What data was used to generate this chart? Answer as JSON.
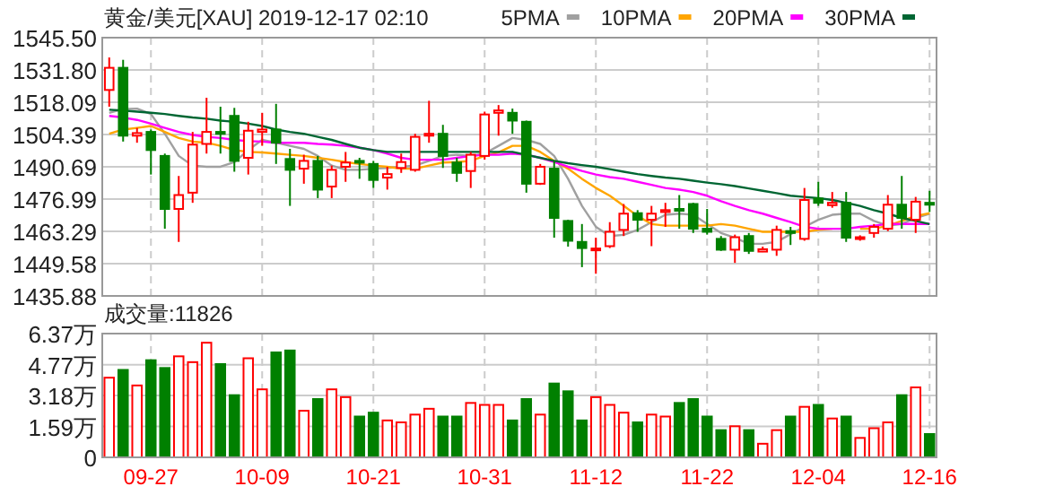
{
  "chart_data": [
    {
      "type": "candlestick",
      "title": "黄金/美元[XAU] 2019-12-17 02:10",
      "legend": "top right",
      "grid": true,
      "tick_labels": "y",
      "categories": [
        null,
        null,
        null,
        null,
        null,
        null,
        null,
        null,
        null,
        null,
        null,
        null,
        null,
        null,
        null,
        null,
        null,
        null,
        null,
        null,
        null,
        null,
        null,
        null,
        null,
        null,
        null,
        null,
        null,
        null,
        null,
        null,
        null,
        null,
        null,
        null,
        null,
        null,
        null,
        null,
        null,
        null,
        null,
        null,
        null,
        null,
        null,
        null,
        null,
        null,
        null,
        null,
        null,
        null,
        null,
        null,
        null,
        null,
        null,
        null
      ],
      "ylim": [
        1435.88,
        1545.5
      ],
      "yticks": [
        1435.88,
        1449.58,
        1463.29,
        1476.99,
        1490.69,
        1504.39,
        1518.09,
        {
          "value": 1531.8,
          "label": "1531.80"
        },
        {
          "value": 1545.5,
          "label": "1545.50"
        }
      ],
      "ohlc": [
        [
          1523.3,
          1537.1,
          1516.2,
          1532.7
        ],
        [
          1532.7,
          1536.1,
          1501.4,
          1503.9
        ],
        [
          1503.9,
          1507.2,
          1500.9,
          1505.0
        ],
        [
          1505.5,
          1506.5,
          1487.4,
          1497.8
        ],
        [
          1495.3,
          1496.3,
          1464.4,
          1472.8
        ],
        [
          1472.8,
          1486.8,
          1458.8,
          1478.7
        ],
        [
          1479.7,
          1505.5,
          1475.4,
          1500.1
        ],
        [
          1500.4,
          1520.0,
          1496.3,
          1505.5
        ],
        [
          1505.5,
          1516.2,
          1496.3,
          1504.7
        ],
        [
          1512.3,
          1515.7,
          1488.6,
          1493.2
        ],
        [
          1494.5,
          1509.8,
          1487.4,
          1506.0
        ],
        [
          1505.5,
          1513.6,
          1499.6,
          1506.5
        ],
        [
          1506.5,
          1517.4,
          1491.9,
          1500.9
        ],
        [
          1494.0,
          1498.3,
          1474.1,
          1489.4
        ],
        [
          1489.9,
          1495.8,
          1483.5,
          1493.2
        ],
        [
          1493.2,
          1495.3,
          1477.4,
          1481.0
        ],
        [
          1482.3,
          1491.2,
          1477.4,
          1489.4
        ],
        [
          1490.7,
          1497.0,
          1484.3,
          1492.5
        ],
        [
          1493.2,
          1494.5,
          1485.6,
          1492.5
        ],
        [
          1491.9,
          1493.2,
          1481.7,
          1485.1
        ],
        [
          1486.1,
          1490.7,
          1481.0,
          1487.6
        ],
        [
          1490.2,
          1496.3,
          1488.1,
          1492.7
        ],
        [
          1489.4,
          1504.7,
          1488.6,
          1503.4
        ],
        [
          1503.9,
          1518.7,
          1500.9,
          1504.7
        ],
        [
          1504.7,
          1508.5,
          1490.2,
          1495.3
        ],
        [
          1492.5,
          1494.5,
          1484.3,
          1488.1
        ],
        [
          1488.9,
          1497.0,
          1481.7,
          1495.8
        ],
        [
          1495.3,
          1514.1,
          1493.7,
          1512.9
        ],
        [
          1513.6,
          1516.9,
          1503.9,
          1514.6
        ],
        [
          1513.6,
          1515.4,
          1504.7,
          1510.3
        ],
        [
          1509.8,
          1510.3,
          1479.7,
          1483.5
        ],
        [
          1483.5,
          1491.9,
          1483.0,
          1490.7
        ],
        [
          1489.9,
          1493.2,
          1460.6,
          1469.0
        ],
        [
          1467.7,
          1468.2,
          1456.8,
          1459.3
        ],
        [
          1458.8,
          1466.4,
          1448.1,
          1456.2
        ],
        [
          1455.5,
          1460.6,
          1445.3,
          1456.0
        ],
        [
          1457.0,
          1467.2,
          1456.2,
          1463.1
        ],
        [
          1463.9,
          1474.9,
          1461.3,
          1470.8
        ],
        [
          1471.0,
          1472.3,
          1463.1,
          1468.2
        ],
        [
          1468.2,
          1474.1,
          1457.0,
          1470.8
        ],
        [
          1471.5,
          1475.4,
          1465.2,
          1472.3
        ],
        [
          1472.8,
          1478.7,
          1464.4,
          1472.1
        ],
        [
          1474.9,
          1475.4,
          1462.6,
          1464.4
        ],
        [
          1464.4,
          1472.8,
          1461.9,
          1463.1
        ],
        [
          1460.1,
          1461.3,
          1455.0,
          1455.5
        ],
        [
          1455.5,
          1461.9,
          1449.9,
          1460.8
        ],
        [
          1461.3,
          1462.6,
          1453.7,
          1455.0
        ],
        [
          1454.7,
          1456.8,
          1454.5,
          1455.7
        ],
        [
          1455.5,
          1465.7,
          1452.9,
          1463.9
        ],
        [
          1463.4,
          1465.2,
          1457.5,
          1462.6
        ],
        [
          1460.1,
          1481.7,
          1459.3,
          1476.6
        ],
        [
          1477.2,
          1484.3,
          1474.1,
          1475.4
        ],
        [
          1474.4,
          1480.0,
          1473.3,
          1475.4
        ],
        [
          1475.4,
          1480.0,
          1458.8,
          1460.6
        ],
        [
          1460.1,
          1461.6,
          1459.3,
          1460.8
        ],
        [
          1462.6,
          1466.4,
          1460.6,
          1465.2
        ],
        [
          1464.4,
          1478.7,
          1463.4,
          1474.6
        ],
        [
          1474.6,
          1486.8,
          1464.4,
          1469.0
        ],
        [
          1468.2,
          1477.9,
          1462.6,
          1475.9
        ],
        [
          1475.4,
          1480.5,
          1471.5,
          1474.6
        ]
      ],
      "colors": [
        "#ff0000",
        "#008000",
        "#ff0000",
        "#008000",
        "#008000",
        "#ff0000",
        "#ff0000",
        "#ff0000",
        "#008000",
        "#008000",
        "#ff0000",
        "#ff0000",
        "#008000",
        "#008000",
        "#ff0000",
        "#008000",
        "#ff0000",
        "#ff0000",
        "#008000",
        "#008000",
        "#ff0000",
        "#ff0000",
        "#ff0000",
        "#ff0000",
        "#008000",
        "#008000",
        "#ff0000",
        "#ff0000",
        "#ff0000",
        "#008000",
        "#008000",
        "#ff0000",
        "#008000",
        "#008000",
        "#008000",
        "#ff0000",
        "#ff0000",
        "#ff0000",
        "#008000",
        "#ff0000",
        "#ff0000",
        "#008000",
        "#008000",
        "#008000",
        "#008000",
        "#ff0000",
        "#008000",
        "#ff0000",
        "#ff0000",
        "#008000",
        "#ff0000",
        "#008000",
        "#ff0000",
        "#008000",
        "#ff0000",
        "#ff0000",
        "#ff0000",
        "#008000",
        "#ff0000",
        "#008000"
      ],
      "series": [
        {
          "name": "5PMA",
          "type": "line",
          "color": "#a0a0a0",
          "values": [
            1513.6,
            1515.2,
            1515.4,
            1513.1,
            1504.7,
            1495.3,
            1491.2,
            1490.7,
            1490.7,
            1492.7,
            1497.8,
            1502.1,
            1500.9,
            1499.6,
            1498.3,
            1495.3,
            1491.2,
            1489.4,
            1489.4,
            1489.9,
            1490.2,
            1490.7,
            1491.2,
            1493.2,
            1495.3,
            1495.8,
            1495.3,
            1496.3,
            1499.6,
            1502.9,
            1502.1,
            1500.4,
            1495.3,
            1485.6,
            1474.1,
            1465.2,
            1461.3,
            1461.8,
            1463.9,
            1467.2,
            1470.3,
            1470.8,
            1470.3,
            1466.4,
            1462.6,
            1460.6,
            1458.0,
            1458.0,
            1458.8,
            1462.1,
            1465.2,
            1468.2,
            1470.3,
            1470.8,
            1470.8,
            1467.7,
            1465.7,
            1466.4,
            1469.0,
            1470.8
          ]
        },
        {
          "name": "10PMA",
          "type": "line",
          "color": "#ffa500",
          "values": [
            1504.7,
            1506.5,
            1507.2,
            1508.0,
            1505.5,
            1502.9,
            1501.4,
            1500.9,
            1499.6,
            1497.8,
            1497.0,
            1496.8,
            1496.3,
            1495.8,
            1495.3,
            1494.5,
            1493.7,
            1492.7,
            1491.9,
            1491.2,
            1490.7,
            1489.9,
            1489.9,
            1491.2,
            1492.5,
            1492.7,
            1493.2,
            1495.3,
            1496.8,
            1499.6,
            1499.6,
            1497.0,
            1493.2,
            1489.9,
            1485.6,
            1481.7,
            1478.4,
            1474.1,
            1469.8,
            1466.4,
            1465.7,
            1465.7,
            1465.7,
            1465.7,
            1466.4,
            1465.7,
            1464.4,
            1463.1,
            1463.1,
            1463.1,
            1463.1,
            1463.9,
            1464.4,
            null,
            1464.4,
            1464.4,
            1465.7,
            1467.7,
            1469.8,
            1471.0
          ]
        },
        {
          "name": "20PMA",
          "type": "line",
          "color": "#ff00ff",
          "values": [
            1512.3,
            1511.6,
            1510.6,
            1509.0,
            1507.2,
            1505.5,
            1504.2,
            1503.4,
            1502.9,
            1502.1,
            1501.6,
            1501.4,
            1500.9,
            1500.9,
            1500.9,
            1500.4,
            1500.1,
            1499.6,
            1498.8,
            1497.8,
            1496.3,
            1494.5,
            1493.7,
            1493.7,
            1493.7,
            1494.5,
            1495.3,
            1495.8,
            1495.8,
            1496.3,
            1495.8,
            1494.5,
            1492.7,
            1490.7,
            1488.9,
            1487.4,
            1486.3,
            1485.6,
            1484.3,
            1483.0,
            1481.7,
            1481.0,
            1480.0,
            1478.4,
            1476.1,
            1474.1,
            1472.3,
            1470.8,
            1469.0,
            1467.2,
            1465.2,
            1464.4,
            1464.4,
            1464.4,
            1465.2,
            1465.7,
            1466.4,
            1466.4,
            1466.4,
            1466.4
          ]
        },
        {
          "name": "30PMA",
          "type": "line",
          "color": "#006633",
          "values": [
            1514.9,
            1514.6,
            1514.1,
            1513.6,
            1513.1,
            1512.3,
            1511.6,
            1511.1,
            1510.3,
            1509.8,
            1509.0,
            1508.0,
            1506.5,
            1505.5,
            1504.7,
            1503.4,
            1502.1,
            1500.4,
            1498.8,
            1497.8,
            1497.0,
            1497.0,
            1497.0,
            1497.0,
            1497.0,
            1497.0,
            1497.0,
            1497.0,
            1497.0,
            1497.0,
            1495.8,
            1494.5,
            1493.2,
            1492.2,
            1491.4,
            1490.7,
            1489.7,
            1488.6,
            1487.6,
            1486.8,
            1486.1,
            1485.6,
            1484.8,
            1484.0,
            1483.3,
            1482.5,
            1481.5,
            1480.5,
            1479.5,
            1478.4,
            1477.9,
            1477.4,
            1476.6,
            1475.4,
            1474.1,
            1472.3,
            1470.8,
            1469.0,
            1467.7,
            1466.4
          ]
        }
      ]
    },
    {
      "type": "bar",
      "title": "成交量:11826",
      "grid": true,
      "categories": [
        null,
        null,
        null,
        "09-27",
        null,
        null,
        null,
        null,
        null,
        null,
        null,
        "10-09",
        null,
        null,
        null,
        null,
        null,
        null,
        null,
        "10-21",
        null,
        null,
        null,
        null,
        null,
        null,
        null,
        "10-31",
        null,
        null,
        null,
        null,
        null,
        null,
        null,
        "11-12",
        null,
        null,
        null,
        null,
        null,
        null,
        null,
        "11-22",
        null,
        null,
        null,
        null,
        null,
        null,
        null,
        "12-04",
        null,
        null,
        null,
        null,
        null,
        null,
        null,
        "12-16"
      ],
      "ylim": [
        0,
        6.37
      ],
      "yticks": [
        0,
        {
          "value": 1.59,
          "label": "1.59万"
        },
        {
          "value": 3.18,
          "label": "3.18万"
        },
        {
          "value": 4.77,
          "label": "4.77万"
        },
        {
          "value": 6.37,
          "label": "6.37万"
        }
      ],
      "values": [
        4.1,
        4.5,
        3.7,
        5.0,
        4.6,
        5.2,
        4.9,
        5.9,
        4.8,
        3.2,
        5.1,
        3.5,
        5.4,
        5.5,
        2.4,
        3.0,
        3.5,
        3.1,
        2.1,
        2.3,
        1.9,
        1.8,
        2.2,
        2.5,
        2.1,
        2.1,
        2.8,
        2.7,
        2.7,
        1.9,
        3.0,
        2.2,
        3.8,
        3.4,
        1.9,
        3.1,
        2.7,
        2.3,
        1.8,
        2.2,
        2.1,
        2.8,
        3.0,
        2.1,
        1.4,
        1.6,
        1.4,
        0.7,
        1.4,
        2.1,
        2.6,
        2.7,
        2.0,
        2.1,
        1.0,
        1.5,
        1.8,
        3.2,
        3.6,
        1.2
      ],
      "colors": [
        "#ff0000",
        "#008000",
        "#ff0000",
        "#008000",
        "#008000",
        "#ff0000",
        "#ff0000",
        "#ff0000",
        "#008000",
        "#008000",
        "#ff0000",
        "#ff0000",
        "#008000",
        "#008000",
        "#ff0000",
        "#008000",
        "#ff0000",
        "#ff0000",
        "#008000",
        "#008000",
        "#ff0000",
        "#ff0000",
        "#ff0000",
        "#ff0000",
        "#008000",
        "#008000",
        "#ff0000",
        "#ff0000",
        "#ff0000",
        "#008000",
        "#008000",
        "#ff0000",
        "#008000",
        "#008000",
        "#008000",
        "#ff0000",
        "#ff0000",
        "#ff0000",
        "#008000",
        "#ff0000",
        "#ff0000",
        "#008000",
        "#008000",
        "#008000",
        "#008000",
        "#ff0000",
        "#008000",
        "#ff0000",
        "#ff0000",
        "#008000",
        "#ff0000",
        "#008000",
        "#ff0000",
        "#008000",
        "#ff0000",
        "#ff0000",
        "#ff0000",
        "#008000",
        "#ff0000",
        "#008000"
      ]
    }
  ]
}
